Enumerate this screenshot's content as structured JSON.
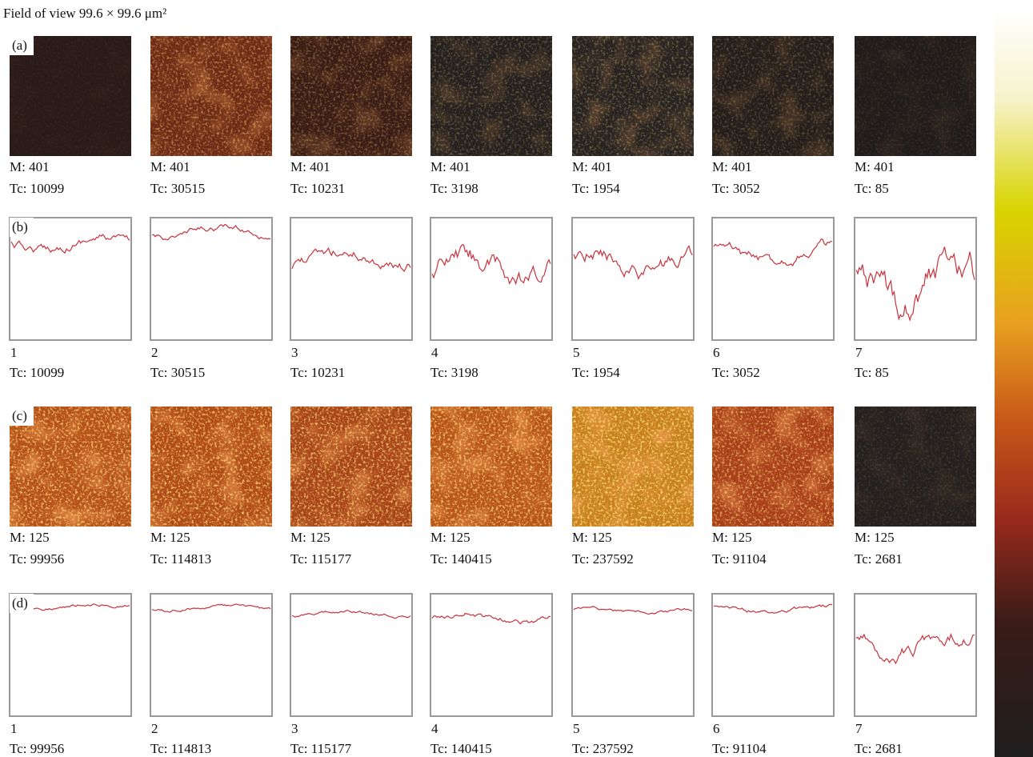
{
  "header": {
    "title": "Field of view 99.6 × 99.6 μm²"
  },
  "rows": [
    {
      "label": "(a)",
      "panels": [
        {
          "m": "M: 401",
          "tc": "Tc: 10099"
        },
        {
          "m": "M: 401",
          "tc": "Tc: 30515"
        },
        {
          "m": "M: 401",
          "tc": "Tc: 10231"
        },
        {
          "m": "M: 401",
          "tc": "Tc: 3198"
        },
        {
          "m": "M: 401",
          "tc": "Tc: 1954"
        },
        {
          "m": "M: 401",
          "tc": "Tc: 3052"
        },
        {
          "m": "M: 401",
          "tc": "Tc: 85"
        }
      ]
    },
    {
      "label": "(b)",
      "panels": [
        {
          "index": "1",
          "tc": "Tc: 10099"
        },
        {
          "index": "2",
          "tc": "Tc: 30515"
        },
        {
          "index": "3",
          "tc": "Tc: 10231"
        },
        {
          "index": "4",
          "tc": "Tc: 3198"
        },
        {
          "index": "5",
          "tc": "Tc: 1954"
        },
        {
          "index": "6",
          "tc": "Tc: 3052"
        },
        {
          "index": "7",
          "tc": "Tc: 85"
        }
      ]
    },
    {
      "label": "(c)",
      "panels": [
        {
          "m": "M: 125",
          "tc": "Tc: 99956"
        },
        {
          "m": "M: 125",
          "tc": "Tc: 114813"
        },
        {
          "m": "M: 125",
          "tc": "Tc: 115177"
        },
        {
          "m": "M: 125",
          "tc": "Tc: 140415"
        },
        {
          "m": "M: 125",
          "tc": "Tc: 237592"
        },
        {
          "m": "M: 125",
          "tc": "Tc: 91104"
        },
        {
          "m": "M: 125",
          "tc": "Tc: 2681"
        }
      ]
    },
    {
      "label": "(d)",
      "panels": [
        {
          "index": "1",
          "tc": "Tc: 99956"
        },
        {
          "index": "2",
          "tc": "Tc: 114813"
        },
        {
          "index": "3",
          "tc": "Tc: 115177"
        },
        {
          "index": "4",
          "tc": "Tc: 140415"
        },
        {
          "index": "5",
          "tc": "Tc: 237592"
        },
        {
          "index": "6",
          "tc": "Tc: 91104"
        },
        {
          "index": "7",
          "tc": "Tc: 2681"
        }
      ]
    }
  ]
}
